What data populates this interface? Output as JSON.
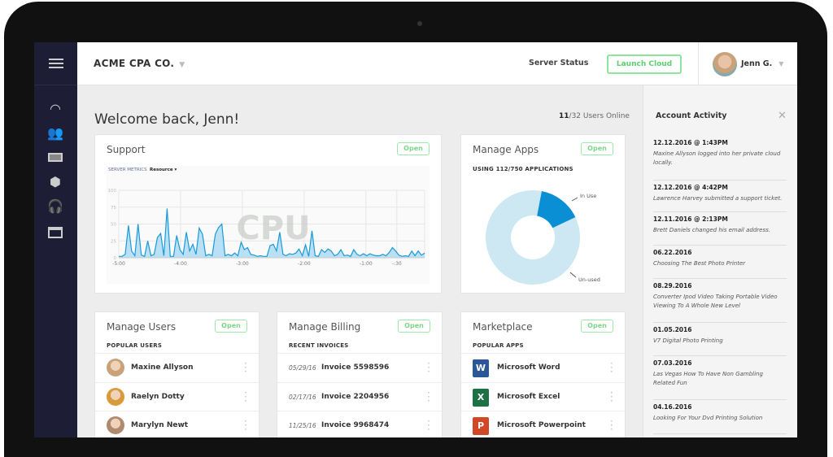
{
  "header": {
    "company": "ACME CPA CO.",
    "server_status_label": "Server Status",
    "server_status_color": "#3fd45a",
    "launch_label": "Launch Cloud",
    "user_name": "Jenn G."
  },
  "sidebar": {
    "items": [
      {
        "icon": "dashboard-gauge-icon"
      },
      {
        "icon": "users-icon"
      },
      {
        "icon": "billing-money-icon"
      },
      {
        "icon": "apps-boxes-icon"
      },
      {
        "icon": "support-headset-icon"
      },
      {
        "icon": "marketplace-store-icon"
      }
    ]
  },
  "main": {
    "welcome": "Welcome back, Jenn!",
    "users_online": "11",
    "users_total": "/32 Users Online"
  },
  "support": {
    "title": "Support",
    "open": "Open",
    "metrics_label": "SERVER METRICS",
    "resource_label": "Resource ▾",
    "watermark": "CPU"
  },
  "apps": {
    "title": "Manage Apps",
    "open": "Open",
    "subtitle": "USING 112/750 APPLICATIONS",
    "in_use_label": "In Use",
    "unused_label": "Un-used"
  },
  "users": {
    "title": "Manage Users",
    "open": "Open",
    "subtitle": "POPULAR USERS",
    "items": [
      {
        "name": "Maxine Allyson",
        "color": "#c9a27a"
      },
      {
        "name": "Raelyn Dotty",
        "color": "#d99a3a"
      },
      {
        "name": "Marylyn Newt",
        "color": "#b08a70"
      }
    ]
  },
  "billing": {
    "title": "Manage Billing",
    "open": "Open",
    "subtitle": "RECENT INVOICES",
    "items": [
      {
        "date": "05/29/16",
        "invoice": "Invoice 5598596"
      },
      {
        "date": "02/17/16",
        "invoice": "Invoice 2204956"
      },
      {
        "date": "11/25/16",
        "invoice": "Invoice 9968474"
      }
    ]
  },
  "marketplace": {
    "title": "Marketplace",
    "open": "Open",
    "subtitle": "POPULAR APPS",
    "items": [
      {
        "name": "Microsoft Word",
        "letter": "W",
        "color": "#2b5797"
      },
      {
        "name": "Microsoft Excel",
        "letter": "X",
        "color": "#1e7145"
      },
      {
        "name": "Microsoft Powerpoint",
        "letter": "P",
        "color": "#d24726"
      }
    ]
  },
  "activity": {
    "title": "Account Activity",
    "items": [
      {
        "date": "12.12.2016 @ 1:43PM",
        "text": "Maxine Allyson logged into her private cloud locally."
      },
      {
        "date": "12.12.2016 @ 4:42PM",
        "text": "Lawrence Harvey submitted a support ticket."
      },
      {
        "date": "12.11.2016 @ 2:13PM",
        "text": "Brett Daniels changed his email address."
      },
      {
        "date": "06.22.2016",
        "text": "Choosing The Best Photo Printer"
      },
      {
        "date": "08.29.2016",
        "text": "Converter Ipod Video Taking Portable Video Viewing To A Whole New Level"
      },
      {
        "date": "01.05.2016",
        "text": "V7 Digital Photo Printing"
      },
      {
        "date": "07.03.2016",
        "text": "Las Vegas How To Have Non Gambling Related Fun"
      },
      {
        "date": "04.16.2016",
        "text": "Looking For Your Dvd Printing Solution"
      }
    ]
  },
  "chart_data": [
    {
      "type": "area",
      "title": "CPU",
      "ylim": [
        0,
        100
      ],
      "yticks": [
        "100",
        "75",
        "50",
        "25",
        "0"
      ],
      "xticks": [
        {
          "label": "-5:00",
          "t": -300
        },
        {
          "label": "-4:00",
          "t": -240
        },
        {
          "label": "-3:00",
          "t": -180
        },
        {
          "label": "-2:00",
          "t": -120
        },
        {
          "label": "-1:00",
          "t": -60
        },
        {
          "label": "-:30",
          "t": -30
        }
      ],
      "x_start": -300,
      "x_end": -3,
      "grid": true,
      "color": "#1a9ad9",
      "values": [
        2,
        2,
        5,
        48,
        10,
        3,
        50,
        4,
        2,
        25,
        3,
        5,
        30,
        36,
        3,
        73,
        2,
        2,
        33,
        12,
        5,
        38,
        10,
        20,
        5,
        44,
        35,
        3,
        5,
        3,
        35,
        45,
        50,
        3,
        5,
        3,
        7,
        3,
        23,
        12,
        15,
        5,
        4,
        2,
        3,
        2,
        2,
        18,
        20,
        10,
        38,
        5,
        3,
        6,
        5,
        7,
        13,
        3,
        19,
        2,
        40,
        3,
        2,
        12,
        8,
        13,
        10,
        3,
        5,
        12,
        3,
        4,
        2,
        12,
        5,
        3,
        6,
        3,
        6,
        4,
        3,
        3,
        5,
        3,
        8,
        15,
        10,
        4,
        2,
        3,
        2,
        10,
        3,
        10,
        4,
        7
      ]
    },
    {
      "type": "pie",
      "donut": true,
      "slices": [
        {
          "name": "In Use",
          "value": 112,
          "color": "#0a8fd4"
        },
        {
          "name": "Un-used",
          "value": 638,
          "color": "#cde8f2"
        }
      ]
    }
  ]
}
